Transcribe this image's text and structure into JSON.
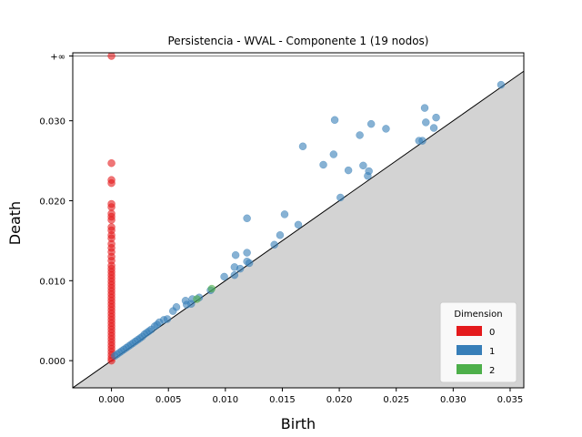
{
  "chart_data": {
    "type": "scatter",
    "title": "Persistencia - WVAL - Componente 1 (19 nodos)",
    "xlabel": "Birth",
    "ylabel": "Death",
    "xlim": [
      -0.0034,
      0.0362
    ],
    "ylim": [
      -0.0034,
      0.0385
    ],
    "x_ticks": [
      0.0,
      0.005,
      0.01,
      0.015,
      0.02,
      0.025,
      0.03,
      0.035
    ],
    "x_tick_labels": [
      "0.000",
      "0.005",
      "0.010",
      "0.015",
      "0.020",
      "0.025",
      "0.030",
      "0.035"
    ],
    "y_ticks": [
      0.0,
      0.01,
      0.02,
      0.03
    ],
    "y_tick_labels": [
      "0.000",
      "0.010",
      "0.020",
      "0.030"
    ],
    "infinity_level": 0.0381,
    "infinity_label": "+∞",
    "diagonal": true,
    "below_diagonal_fill": "#d3d3d3",
    "grid": false,
    "legend": {
      "title": "Dimension",
      "position": "lower-right",
      "entries": [
        "0",
        "1",
        "2"
      ]
    },
    "colors": {
      "0": "#e41a1c",
      "1": "#377eb8",
      "2": "#4daf4a"
    },
    "series": [
      {
        "name": "0",
        "points": [
          [
            0.0,
            0.0381
          ],
          [
            0.0,
            0.0247
          ],
          [
            0.0,
            0.0226
          ],
          [
            0.0,
            0.0222
          ],
          [
            0.0,
            0.0196
          ],
          [
            0.0,
            0.0192
          ],
          [
            0.0,
            0.0184
          ],
          [
            0.0,
            0.018
          ],
          [
            0.0,
            0.0176
          ],
          [
            0.0,
            0.0167
          ],
          [
            0.0,
            0.0163
          ],
          [
            0.0,
            0.0157
          ],
          [
            0.0,
            0.0153
          ],
          [
            0.0,
            0.0146
          ],
          [
            0.0,
            0.0141
          ],
          [
            0.0,
            0.0136
          ],
          [
            0.0,
            0.013
          ],
          [
            0.0,
            0.0125
          ],
          [
            0.0,
            0.0119
          ],
          [
            0.0,
            0.0115
          ],
          [
            0.0,
            0.0111
          ],
          [
            0.0,
            0.0107
          ],
          [
            0.0,
            0.0103
          ],
          [
            0.0,
            0.0099
          ],
          [
            0.0,
            0.0095
          ],
          [
            0.0,
            0.0091
          ],
          [
            0.0,
            0.0087
          ],
          [
            0.0,
            0.0083
          ],
          [
            0.0,
            0.0079
          ],
          [
            0.0,
            0.0075
          ],
          [
            0.0,
            0.0071
          ],
          [
            0.0,
            0.0067
          ],
          [
            0.0,
            0.0063
          ],
          [
            0.0,
            0.0059
          ],
          [
            0.0,
            0.0055
          ],
          [
            0.0,
            0.0051
          ],
          [
            0.0,
            0.0047
          ],
          [
            0.0,
            0.0043
          ],
          [
            0.0,
            0.0039
          ],
          [
            0.0,
            0.0035
          ],
          [
            0.0,
            0.0031
          ],
          [
            0.0,
            0.0027
          ],
          [
            0.0,
            0.0023
          ],
          [
            0.0,
            0.0019
          ],
          [
            0.0,
            0.0015
          ],
          [
            0.0,
            0.0011
          ],
          [
            0.0,
            0.0007
          ],
          [
            0.0,
            0.0003
          ],
          [
            0.0,
            0.0
          ]
        ]
      },
      {
        "name": "1",
        "points": [
          [
            0.0342,
            0.0345
          ],
          [
            0.0275,
            0.0316
          ],
          [
            0.0285,
            0.0304
          ],
          [
            0.0276,
            0.0298
          ],
          [
            0.0283,
            0.0291
          ],
          [
            0.027,
            0.0275
          ],
          [
            0.0273,
            0.0275
          ],
          [
            0.0196,
            0.0301
          ],
          [
            0.0228,
            0.0296
          ],
          [
            0.0241,
            0.029
          ],
          [
            0.0218,
            0.0282
          ],
          [
            0.0168,
            0.0268
          ],
          [
            0.0195,
            0.0258
          ],
          [
            0.0186,
            0.0245
          ],
          [
            0.0221,
            0.0244
          ],
          [
            0.0208,
            0.0238
          ],
          [
            0.0226,
            0.0237
          ],
          [
            0.0225,
            0.0231
          ],
          [
            0.0201,
            0.0204
          ],
          [
            0.0119,
            0.0178
          ],
          [
            0.0152,
            0.0183
          ],
          [
            0.0164,
            0.017
          ],
          [
            0.0148,
            0.0157
          ],
          [
            0.0143,
            0.0145
          ],
          [
            0.0119,
            0.0135
          ],
          [
            0.0109,
            0.0132
          ],
          [
            0.0119,
            0.0124
          ],
          [
            0.0121,
            0.0122
          ],
          [
            0.0108,
            0.0117
          ],
          [
            0.0113,
            0.0115
          ],
          [
            0.0108,
            0.0107
          ],
          [
            0.0099,
            0.0105
          ],
          [
            0.0087,
            0.0088
          ],
          [
            0.0077,
            0.0079
          ],
          [
            0.0071,
            0.0077
          ],
          [
            0.0065,
            0.0075
          ],
          [
            0.007,
            0.0071
          ],
          [
            0.0066,
            0.007
          ],
          [
            0.0057,
            0.0067
          ],
          [
            0.0054,
            0.0062
          ],
          [
            0.0049,
            0.0052
          ],
          [
            0.0046,
            0.0051
          ],
          [
            0.0042,
            0.0048
          ],
          [
            0.004,
            0.0045
          ],
          [
            0.0038,
            0.0043
          ],
          [
            0.0035,
            0.0039
          ],
          [
            0.0033,
            0.0037
          ],
          [
            0.0031,
            0.0035
          ],
          [
            0.0029,
            0.0033
          ],
          [
            0.0027,
            0.003
          ],
          [
            0.0025,
            0.0028
          ],
          [
            0.0023,
            0.0026
          ],
          [
            0.0021,
            0.0024
          ],
          [
            0.0019,
            0.0022
          ],
          [
            0.0017,
            0.002
          ],
          [
            0.0015,
            0.0018
          ],
          [
            0.0013,
            0.0016
          ],
          [
            0.0011,
            0.0014
          ],
          [
            0.0009,
            0.0012
          ],
          [
            0.0007,
            0.001
          ],
          [
            0.0005,
            0.0008
          ],
          [
            0.0003,
            0.0006
          ]
        ]
      },
      {
        "name": "2",
        "points": [
          [
            0.0088,
            0.009
          ],
          [
            0.0075,
            0.0077
          ]
        ]
      }
    ]
  }
}
